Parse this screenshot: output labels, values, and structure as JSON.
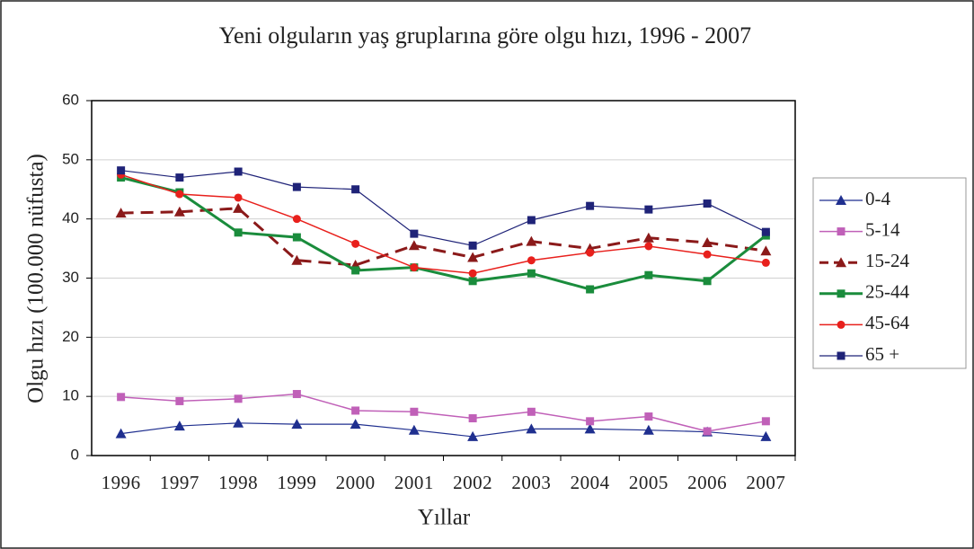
{
  "chart_data": {
    "type": "line",
    "title": "Yeni olguların yaş gruplarına göre olgu hızı, 1996 - 2007",
    "x_label": "Yıllar",
    "y_label": "Olgu hızı (100.000 nüfusta)",
    "categories": [
      "1996",
      "1997",
      "1998",
      "1999",
      "2000",
      "2001",
      "2002",
      "2003",
      "2004",
      "2005",
      "2006",
      "2007"
    ],
    "ylim": [
      0,
      60
    ],
    "yticks": [
      0,
      10,
      20,
      30,
      40,
      50,
      60
    ],
    "grid": true,
    "legend": "right",
    "series": [
      {
        "name": "0-4",
        "color": "#1f2f8f",
        "marker": "triangle",
        "dash": false,
        "width": 1.2,
        "values": [
          3.7,
          5.0,
          5.5,
          5.3,
          5.3,
          4.3,
          3.2,
          4.5,
          4.5,
          4.3,
          4.0,
          3.2
        ]
      },
      {
        "name": "5-14",
        "color": "#c060b8",
        "marker": "square",
        "dash": false,
        "width": 1.5,
        "values": [
          9.9,
          9.2,
          9.6,
          10.4,
          7.6,
          7.4,
          6.3,
          7.4,
          5.8,
          6.6,
          4.1,
          5.8
        ]
      },
      {
        "name": "15-24",
        "color": "#8b1a1a",
        "marker": "triangle",
        "dash": true,
        "width": 3,
        "values": [
          41.0,
          41.2,
          41.8,
          33.0,
          32.2,
          35.5,
          33.5,
          36.2,
          35.0,
          36.8,
          36.0,
          34.6
        ]
      },
      {
        "name": "25-44",
        "color": "#1a8c3c",
        "marker": "square",
        "dash": false,
        "width": 3,
        "values": [
          47.0,
          44.5,
          37.7,
          36.9,
          31.3,
          31.8,
          29.5,
          30.8,
          28.1,
          30.5,
          29.5,
          37.2
        ]
      },
      {
        "name": "45-64",
        "color": "#e8201c",
        "marker": "circle",
        "dash": false,
        "width": 1.5,
        "values": [
          47.5,
          44.2,
          43.6,
          40.0,
          35.8,
          31.8,
          30.8,
          33.0,
          34.3,
          35.4,
          34.0,
          32.6
        ]
      },
      {
        "name": "65 +",
        "color": "#1f2378",
        "marker": "square",
        "dash": false,
        "width": 1.2,
        "values": [
          48.2,
          47.0,
          48.0,
          45.4,
          45.0,
          37.5,
          35.5,
          39.8,
          42.2,
          41.6,
          42.6,
          37.8
        ]
      }
    ]
  }
}
